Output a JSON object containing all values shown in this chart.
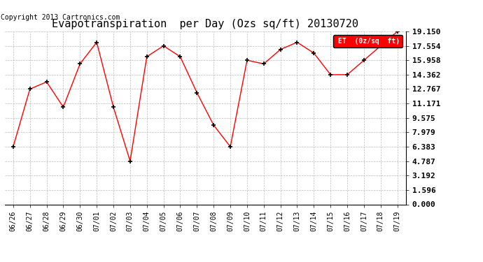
{
  "title": "Evapotranspiration  per Day (Ozs sq/ft) 20130720",
  "copyright": "Copyright 2013 Cartronics.com",
  "legend_label": "ET  (0z/sq  ft)",
  "x_labels": [
    "06/26",
    "06/27",
    "06/28",
    "06/29",
    "06/30",
    "07/01",
    "07/02",
    "07/03",
    "07/04",
    "07/05",
    "07/06",
    "07/07",
    "07/08",
    "07/09",
    "07/10",
    "07/11",
    "07/12",
    "07/13",
    "07/14",
    "07/15",
    "07/16",
    "07/17",
    "07/18",
    "07/19"
  ],
  "y_values": [
    6.383,
    12.767,
    13.563,
    10.771,
    15.56,
    17.95,
    10.771,
    4.787,
    16.356,
    17.554,
    16.356,
    12.369,
    8.775,
    6.383,
    15.958,
    15.56,
    17.156,
    17.95,
    16.754,
    14.362,
    14.362,
    15.958,
    17.554,
    19.15
  ],
  "ylim": [
    0.0,
    19.15
  ],
  "yticks": [
    0.0,
    1.596,
    3.192,
    4.787,
    6.383,
    7.979,
    9.575,
    11.171,
    12.767,
    14.362,
    15.958,
    17.554,
    19.15
  ],
  "line_color": "red",
  "marker": "+",
  "marker_color": "black",
  "bg_color": "#ffffff",
  "grid_color": "#bbbbbb",
  "title_fontsize": 11,
  "copyright_fontsize": 7,
  "ytick_fontsize": 8,
  "xtick_fontsize": 7,
  "legend_bg": "red",
  "legend_text_color": "white"
}
